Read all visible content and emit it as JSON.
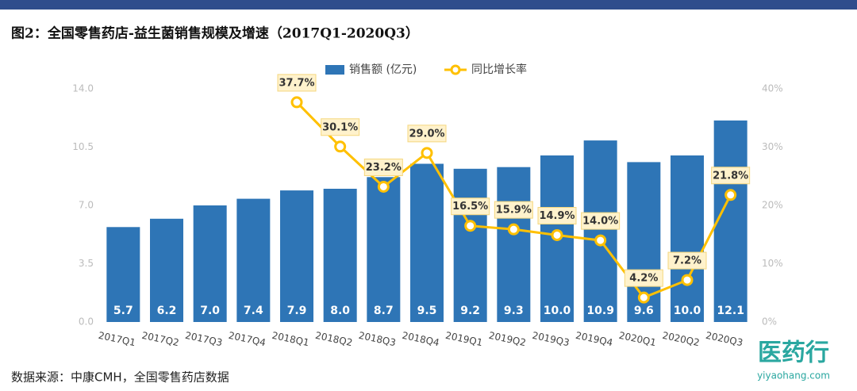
{
  "chart_data": {
    "type": "bar-line",
    "title": "图2：全国零售药店-益生菌销售规模及增速（2017Q1-2020Q3）",
    "categories": [
      "2017Q1",
      "2017Q2",
      "2017Q3",
      "2017Q4",
      "2018Q1",
      "2018Q2",
      "2018Q3",
      "2018Q4",
      "2019Q1",
      "2019Q2",
      "2019Q3",
      "2019Q4",
      "2020Q1",
      "2020Q2",
      "2020Q3"
    ],
    "series": [
      {
        "name": "销售额 (亿元)",
        "type": "bar",
        "color": "#2e75b6",
        "values": [
          5.7,
          6.2,
          7.0,
          7.4,
          7.9,
          8.0,
          8.7,
          9.5,
          9.2,
          9.3,
          10.0,
          10.9,
          9.6,
          10.0,
          12.1
        ],
        "value_labels": [
          "5.7",
          "6.2",
          "7.0",
          "7.4",
          "7.9",
          "8.0",
          "8.7",
          "9.5",
          "9.2",
          "9.3",
          "10.0",
          "10.9",
          "9.6",
          "10.0",
          "12.1"
        ]
      },
      {
        "name": "同比增长率",
        "type": "line",
        "color": "#ffc000",
        "axis": "y2",
        "values": [
          null,
          null,
          null,
          null,
          37.7,
          30.1,
          23.2,
          29.0,
          16.5,
          15.9,
          14.9,
          14.0,
          4.2,
          7.2,
          21.8
        ],
        "value_labels": [
          null,
          null,
          null,
          null,
          "37.7%",
          "30.1%",
          "23.2%",
          "29.0%",
          "16.5%",
          "15.9%",
          "14.9%",
          "14.0%",
          "4.2%",
          "7.2%",
          "21.8%"
        ]
      }
    ],
    "ylim": [
      0,
      14
    ],
    "yticks": [
      {
        "value": 0,
        "label": "0.0"
      },
      {
        "value": 3.5,
        "label": "3.5"
      },
      {
        "value": 7,
        "label": "7.0"
      },
      {
        "value": 10.5,
        "label": "10.5"
      },
      {
        "value": 14,
        "label": "14.0"
      }
    ],
    "y2lim": [
      0,
      40
    ],
    "y2ticks": [
      {
        "value": 0,
        "label": "0%"
      },
      {
        "value": 10,
        "label": "10%"
      },
      {
        "value": 20,
        "label": "20%"
      },
      {
        "value": 30,
        "label": "30%"
      },
      {
        "value": 40,
        "label": "40%"
      }
    ],
    "source": "数据来源：中康CMH，全国零售药店数据",
    "logo": "医药行",
    "logo_url": "yiyaohang.com"
  }
}
